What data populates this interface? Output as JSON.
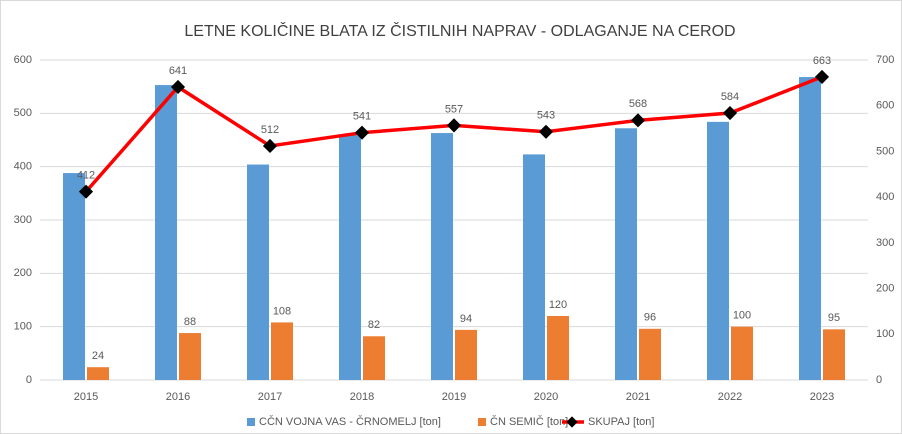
{
  "chart_data": {
    "type": "bar",
    "title": "LETNE KOLIČINE BLATA IZ ČISTILNIH NAPRAV - ODLAGANJE NA CEROD",
    "categories": [
      "2015",
      "2016",
      "2017",
      "2018",
      "2019",
      "2020",
      "2021",
      "2022",
      "2023"
    ],
    "series": [
      {
        "name": "CČN VOJNA VAS - ČRNOMELJ [ton]",
        "color": "#5b9bd5",
        "type": "bar",
        "values": [
          388,
          553,
          404,
          459,
          463,
          423,
          472,
          484,
          568
        ]
      },
      {
        "name": "ČN SEMIČ [ton]",
        "color": "#ed7d31",
        "type": "bar",
        "values": [
          24,
          88,
          108,
          82,
          94,
          120,
          96,
          100,
          95
        ],
        "labels": true
      },
      {
        "name": "SKUPAJ [ton]",
        "color": "#ff0000",
        "type": "line",
        "axis": "y2",
        "values": [
          412,
          641,
          512,
          541,
          557,
          543,
          568,
          584,
          663
        ],
        "labels": true
      }
    ],
    "ylim": [
      0,
      600
    ],
    "yticks": [
      0,
      100,
      200,
      300,
      400,
      500,
      600
    ],
    "y2lim": [
      0,
      700
    ],
    "y2ticks": [
      0,
      100,
      200,
      300,
      400,
      500,
      600,
      700
    ],
    "grid": true,
    "legend": "bottom"
  }
}
